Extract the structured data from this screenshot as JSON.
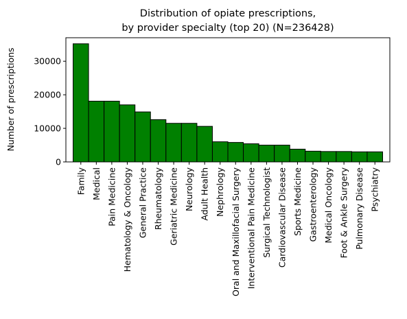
{
  "chart_data": {
    "type": "bar",
    "title": [
      "Distribution of opiate prescriptions,",
      "by provider specialty (top 20) (N=236428)"
    ],
    "xlabel": "",
    "ylabel": "Number of prescriptions",
    "categories": [
      "Family",
      "Medical",
      "Pain Medicine",
      "Hematology & Oncology",
      "General Practice",
      "Rheumatology",
      "Geriatric Medicine",
      "Neurology",
      "Adult Health",
      "Nephrology",
      "Oral and Maxillofacial Surgery",
      "Interventional Pain Medicine",
      "Surgical Technologist",
      "Cardiovascular Disease",
      "Sports Medicine",
      "Gastroenterology",
      "Medical Oncology",
      "Foot & Ankle Surgery",
      "Pulmonary Disease",
      "Psychiatry"
    ],
    "values": [
      35200,
      18100,
      18100,
      17000,
      14900,
      12600,
      11500,
      11500,
      10600,
      6000,
      5800,
      5400,
      5000,
      5000,
      3800,
      3200,
      3100,
      3100,
      3000,
      3000
    ],
    "ylim": [
      0,
      37000
    ],
    "yticks": [
      0,
      10000,
      20000,
      30000
    ],
    "ytick_labels": [
      "0",
      "10000",
      "20000",
      "30000"
    ],
    "bar_color": "#008000",
    "edge_color": "#000000",
    "grid": false,
    "legend": "none"
  }
}
